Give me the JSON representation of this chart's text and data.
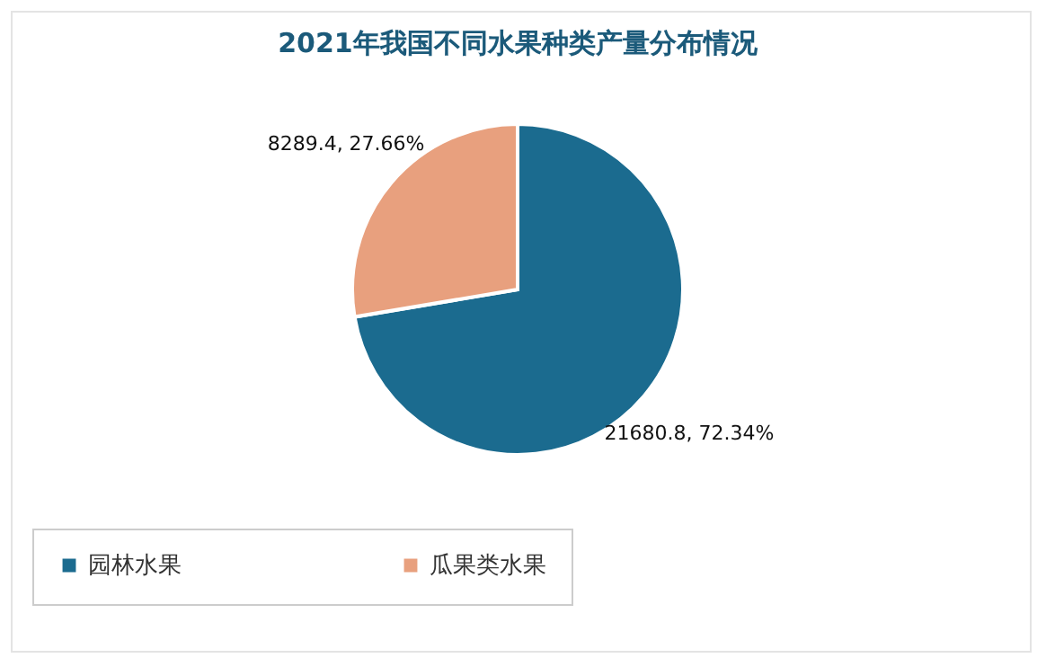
{
  "chart_data": {
    "type": "pie",
    "title": "2021年我国不同水果种类产量分布情况",
    "categories": [
      "园林水果",
      "瓜果类水果"
    ],
    "values": [
      21680.8,
      8289.4
    ],
    "colors": [
      "#1b6b8f",
      "#e8a07e"
    ],
    "value_labels": [
      "21680.8, 72.34%",
      "8289.4, 27.66%"
    ],
    "legend": "bottom"
  }
}
